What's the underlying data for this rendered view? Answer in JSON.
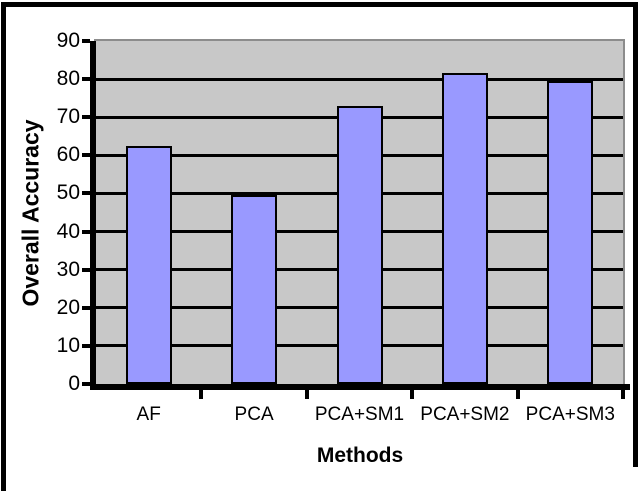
{
  "chart_data": {
    "type": "bar",
    "title": "",
    "categories": [
      "AF",
      "PCA",
      "PCA+SM1",
      "PCA+SM2",
      "PCA+SM3"
    ],
    "values": [
      62.5,
      49.5,
      73,
      81.5,
      79.5
    ],
    "xlabel": "Methods",
    "ylabel": "Overall Accuracy",
    "ylim": [
      0,
      90
    ],
    "yticks": [
      0,
      10,
      20,
      30,
      40,
      50,
      60,
      70,
      80,
      90
    ],
    "grid": "horizontal-black",
    "legend": false,
    "colors": {
      "bar_fill": "#9999ff",
      "bar_border": "#000000",
      "plot_bg": "#c8c8c8",
      "plot_border": "#8c8c8c",
      "gridline": "#000000",
      "axis": "#000000",
      "frame": "#000000",
      "text": "#000000",
      "background": "#ffffff"
    }
  }
}
